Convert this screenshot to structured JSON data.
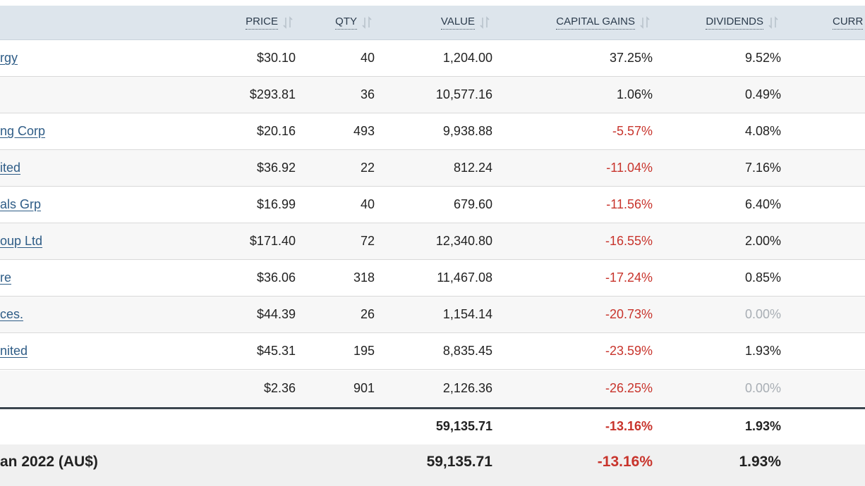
{
  "header": {
    "price_label": "PRICE",
    "qty_label": "QTY",
    "value_label": "VALUE",
    "capital_gains_label": "CAPITAL GAINS",
    "dividends_label": "DIVIDENDS",
    "currency_label": "CURR"
  },
  "rows": [
    {
      "name": "rgy",
      "price": "$30.10",
      "qty": "40",
      "value": "1,204.00",
      "capital_gains": "37.25%",
      "dividends": "9.52%"
    },
    {
      "name": "",
      "price": "$293.81",
      "qty": "36",
      "value": "10,577.16",
      "capital_gains": "1.06%",
      "dividends": "0.49%"
    },
    {
      "name": "ng Corp",
      "price": "$20.16",
      "qty": "493",
      "value": "9,938.88",
      "capital_gains": "-5.57%",
      "dividends": "4.08%"
    },
    {
      "name": "ited",
      "price": "$36.92",
      "qty": "22",
      "value": "812.24",
      "capital_gains": "-11.04%",
      "dividends": "7.16%"
    },
    {
      "name": "als Grp",
      "price": "$16.99",
      "qty": "40",
      "value": "679.60",
      "capital_gains": "-11.56%",
      "dividends": "6.40%"
    },
    {
      "name": "oup Ltd",
      "price": "$171.40",
      "qty": "72",
      "value": "12,340.80",
      "capital_gains": "-16.55%",
      "dividends": "2.00%"
    },
    {
      "name": "re",
      "price": "$36.06",
      "qty": "318",
      "value": "11,467.08",
      "capital_gains": "-17.24%",
      "dividends": "0.85%"
    },
    {
      "name": "ces.",
      "price": "$44.39",
      "qty": "26",
      "value": "1,154.14",
      "capital_gains": "-20.73%",
      "dividends": "0.00%"
    },
    {
      "name": "nited",
      "price": "$45.31",
      "qty": "195",
      "value": "8,835.45",
      "capital_gains": "-23.59%",
      "dividends": "1.93%"
    },
    {
      "name": "",
      "price": "$2.36",
      "qty": "901",
      "value": "2,126.36",
      "capital_gains": "-26.25%",
      "dividends": "0.00%"
    }
  ],
  "subtotal": {
    "value": "59,135.71",
    "capital_gains": "-13.16%",
    "dividends": "1.93%"
  },
  "total": {
    "label": "an 2022 (AU$)",
    "value": "59,135.71",
    "capital_gains": "-13.16%",
    "dividends": "1.93%"
  },
  "colors": {
    "header_bg": "#dde5ec",
    "negative": "#c8342c",
    "zero": "#a8aeb4",
    "link": "#2e5c86"
  }
}
